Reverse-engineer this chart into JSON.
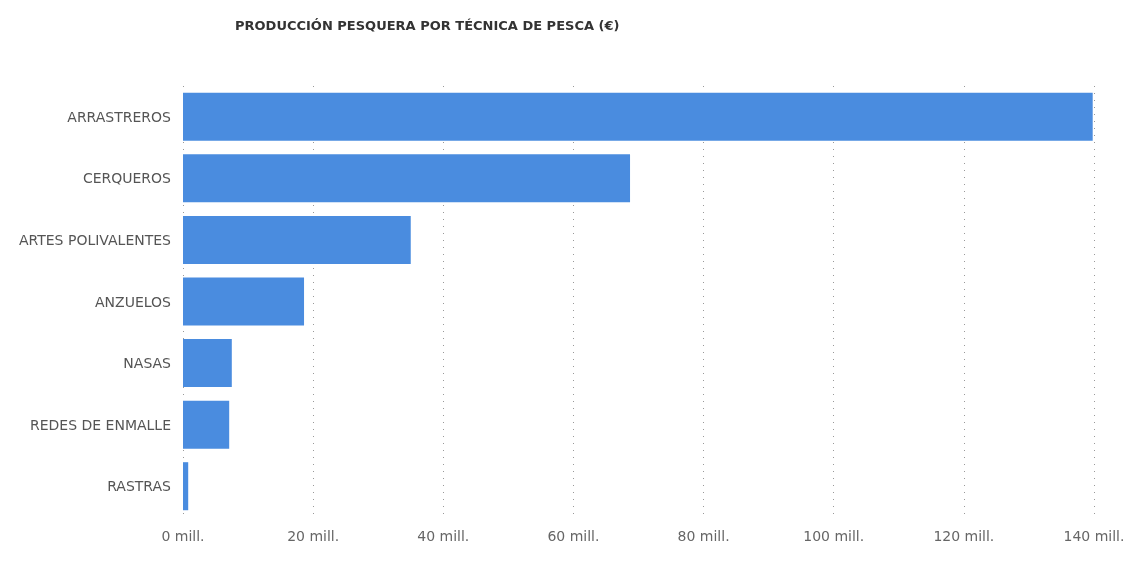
{
  "chart_data": {
    "type": "bar",
    "orientation": "horizontal",
    "title": "PRODUCCIÓN PESQUERA POR TÉCNICA DE PESCA (€)",
    "categories": [
      "ARRASTREROS",
      "CERQUEROS",
      "ARTES POLIVALENTES",
      "ANZUELOS",
      "NASAS",
      "REDES DE ENMALLE",
      "RASTRAS"
    ],
    "values": [
      139.8,
      68.7,
      35.0,
      18.6,
      7.5,
      7.1,
      0.8
    ],
    "color": "#4a8cdf",
    "xlim": [
      0,
      140
    ],
    "xticks": [
      {
        "value": 0,
        "label": "0 mill."
      },
      {
        "value": 20,
        "label": "20 mill."
      },
      {
        "value": 40,
        "label": "40 mill."
      },
      {
        "value": 60,
        "label": "60 mill."
      },
      {
        "value": 80,
        "label": "80 mill."
      },
      {
        "value": 100,
        "label": "100 mill."
      },
      {
        "value": 120,
        "label": "120 mill."
      },
      {
        "value": 140,
        "label": "140 mill."
      }
    ],
    "grid": "x"
  }
}
